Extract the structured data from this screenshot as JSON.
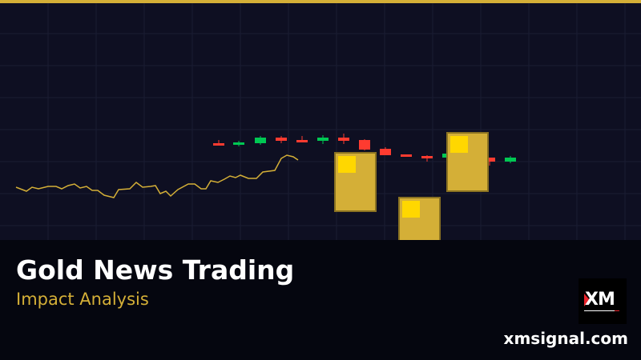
{
  "banner": {
    "title": "Gold News Trading",
    "subtitle": "Impact Analysis",
    "website": "xmsignal.com",
    "logo_text": "XM"
  },
  "colors": {
    "accent_gold": "#d4af37",
    "gold_highlight": "#ffd700",
    "bullish": "#00c853",
    "bearish": "#ff3b30",
    "background": "#0e0f22"
  },
  "illustration": {
    "candle_colors": [
      "bearish",
      "bullish",
      "bullish",
      "bearish",
      "bearish",
      "bullish",
      "bearish",
      "bearish",
      "bearish",
      "bearish",
      "bearish",
      "bullish",
      "bearish",
      "bearish",
      "bullish"
    ],
    "gold_bar_count": 3
  }
}
